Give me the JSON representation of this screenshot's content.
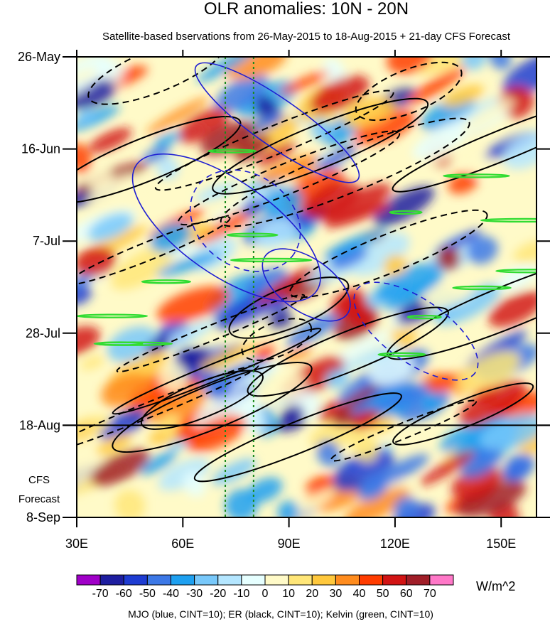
{
  "chart_data": {
    "type": "heatmap",
    "title": "OLR anomalies: 10N - 20N",
    "subtitle": "Satellite-based bservations from 26-May-2015 to 18-Aug-2015 + 21-day CFS Forecast",
    "x_axis": {
      "range": [
        30,
        160
      ],
      "ticks": [
        {
          "value": 30,
          "label": "30E"
        },
        {
          "value": 60,
          "label": "60E"
        },
        {
          "value": 90,
          "label": "90E"
        },
        {
          "value": 120,
          "label": "120E"
        },
        {
          "value": 150,
          "label": "150E"
        }
      ]
    },
    "y_axis": {
      "range": [
        "26-May-2015",
        "8-Sep-2015"
      ],
      "ticks": [
        {
          "value": "26-May-2015",
          "label": "26-May"
        },
        {
          "value": "16-Jun-2015",
          "label": "16-Jun"
        },
        {
          "value": "7-Jul-2015",
          "label": "7-Jul"
        },
        {
          "value": "28-Jul-2015",
          "label": "28-Jul"
        },
        {
          "value": "18-Aug-2015",
          "label": "18-Aug"
        },
        {
          "value": "8-Sep-2015",
          "label": "8-Sep"
        }
      ],
      "reversed": true
    },
    "forecast_start": "18-Aug-2015",
    "forecast_label_line1": "CFS",
    "forecast_label_line2": "Forecast",
    "reference_longitudes": [
      72,
      80
    ],
    "colorbar": {
      "unit": "W/m^2",
      "labels": [
        "-70",
        "-60",
        "-50",
        "-40",
        "-30",
        "-20",
        "-10",
        "0",
        "10",
        "20",
        "30",
        "40",
        "50",
        "60",
        "70"
      ],
      "colors": [
        "#a000c8",
        "#1e1ea0",
        "#1e3cd2",
        "#3c78e6",
        "#1ea0f0",
        "#78c8fa",
        "#b4e6ff",
        "#e6ffff",
        "#fffac8",
        "#ffe678",
        "#ffc83c",
        "#ff8c1e",
        "#ff3c00",
        "#d21414",
        "#a01e28",
        "#ff78c8"
      ]
    },
    "contour_legend": "MJO (blue, CINT=10); ER (black, CINT=10); Kelvin (green, CINT=10)",
    "contour_colors": {
      "mjo": "#1e1ed2",
      "er": "#000000",
      "kelvin": "#32dc32"
    }
  }
}
